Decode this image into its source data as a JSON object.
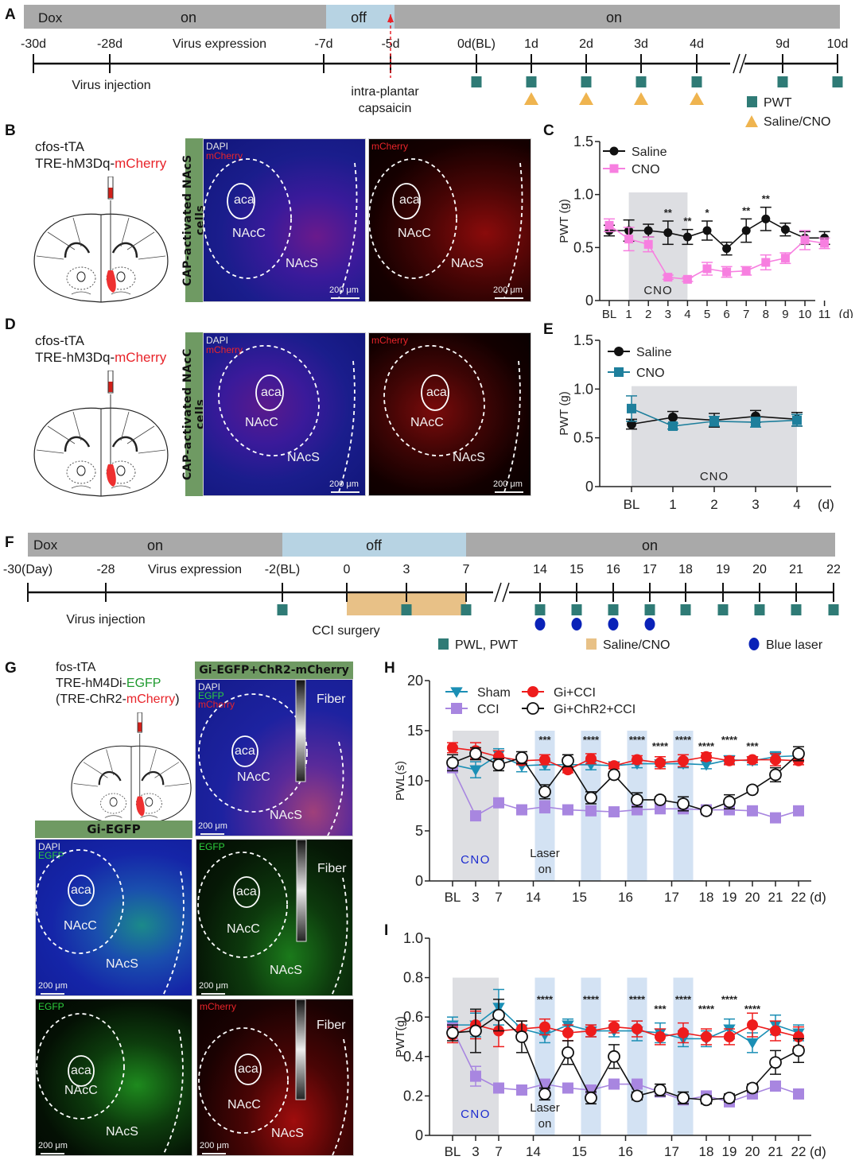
{
  "figure": {
    "panel_labels": [
      "A",
      "B",
      "C",
      "D",
      "E",
      "F",
      "G",
      "H",
      "I"
    ]
  },
  "panelA": {
    "dox_label": "Dox",
    "segments": [
      {
        "label": "on",
        "state": "on"
      },
      {
        "label": "off",
        "state": "off"
      },
      {
        "label": "on",
        "state": "on"
      }
    ],
    "ticks": [
      "-30d",
      "-28d",
      "-7d",
      "-5d",
      "0d(BL)",
      "1d",
      "2d",
      "3d",
      "4d",
      "9d",
      "10d"
    ],
    "annotation_virus_expression": "Virus expression",
    "annotation_virus_injection": "Virus injection",
    "annotation_capsaicin": "intra-plantar capsaicin",
    "annotation_capsaicin_line1": "intra-plantar",
    "annotation_capsaicin_line2": "capsaicin",
    "pwt_days": [
      "0d(BL)",
      "1d",
      "2d",
      "3d",
      "4d",
      "9d",
      "10d"
    ],
    "treatment_days": [
      "1d",
      "2d",
      "3d",
      "4d"
    ],
    "legend": [
      {
        "label": "PWT",
        "symbol": "square",
        "color": "#2f7b76"
      },
      {
        "label": "Saline/CNO",
        "symbol": "triangle",
        "color": "#efb44f"
      }
    ],
    "colors": {
      "on": "#a9a9a9",
      "off": "#b7d3e3",
      "marker_pwt": "#2f7b76",
      "marker_treat": "#efb44f",
      "capsaicin_arrow": "#e8242a"
    }
  },
  "panelB": {
    "genotype_line1": "cfos-tTA",
    "genotype_line2_prefix": "TRE-hM3Dq-",
    "genotype_line2_highlight": "mCherry",
    "side_banner": "CAP-activated NAcS cells",
    "images": [
      {
        "channels": [
          "DAPI",
          "mCherry"
        ],
        "regions": [
          "aca",
          "NAcC",
          "NAcS"
        ],
        "scale": "200 μm"
      },
      {
        "channels": [
          "mCherry"
        ],
        "regions": [
          "aca",
          "NAcC",
          "NAcS"
        ],
        "scale": "200 μm"
      }
    ]
  },
  "panelD": {
    "genotype_line1": "cfos-tTA",
    "genotype_line2_prefix": "TRE-hM3Dq-",
    "genotype_line2_highlight": "mCherry",
    "side_banner": "CAP-activated NAcC cells",
    "images": [
      {
        "channels": [
          "DAPI",
          "mCherry"
        ],
        "regions": [
          "aca",
          "NAcC",
          "NAcS"
        ],
        "scale": "200 μm"
      },
      {
        "channels": [
          "mCherry"
        ],
        "regions": [
          "aca",
          "NAcC",
          "NAcS"
        ],
        "scale": "200 μm"
      }
    ]
  },
  "panelF": {
    "dox_label": "Dox",
    "segments": [
      {
        "label": "on",
        "state": "on"
      },
      {
        "label": "off",
        "state": "off"
      },
      {
        "label": "on",
        "state": "on"
      }
    ],
    "ticks": [
      "-30(Day)",
      "-28",
      "-2(BL)",
      "0",
      "3",
      "7",
      "14",
      "15",
      "16",
      "17",
      "18",
      "19",
      "20",
      "21",
      "22"
    ],
    "annotation_virus_expression": "Virus expression",
    "annotation_virus_injection": "Virus injection",
    "annotation_cci": "CCI surgery",
    "measure_days": [
      "-2(BL)",
      "3",
      "7",
      "14",
      "15",
      "16",
      "17",
      "18",
      "19",
      "20",
      "21",
      "22"
    ],
    "laser_days": [
      "14",
      "15",
      "16",
      "17"
    ],
    "legend": [
      {
        "label": "PWL, PWT",
        "symbol": "square",
        "color": "#2f7b76"
      },
      {
        "label": "Saline/CNO",
        "symbol": "rect",
        "color": "#e8c187"
      },
      {
        "label": "Blue laser",
        "symbol": "circle",
        "color": "#0a22b8"
      }
    ]
  },
  "panelG": {
    "genotype_line1": "fos-tTA",
    "genotype_line2_prefix": "TRE-hM4Di-",
    "genotype_line2_highlight": "EGFP",
    "genotype_line3_prefix": "(TRE-ChR2-",
    "genotype_line3_highlight": "mCherry",
    "genotype_line3_suffix": ")",
    "banner_right": "Gi-EGFP+ChR2-mCherry",
    "banner_left": "Gi-EGFP",
    "images": [
      {
        "id": "merge-chr2",
        "channels": [
          "DAPI",
          "EGFP",
          "mCherry"
        ],
        "regions": [
          "aca",
          "NAcC",
          "NAcS"
        ],
        "fiber": "Fiber",
        "scale": "200 μm"
      },
      {
        "id": "merge-gi",
        "channels": [
          "DAPI",
          "EGFP"
        ],
        "regions": [
          "aca",
          "NAcC",
          "NAcS"
        ],
        "scale": "200 μm"
      },
      {
        "id": "egfp-fiber",
        "channels": [
          "EGFP"
        ],
        "regions": [
          "aca",
          "NAcC",
          "NAcS"
        ],
        "fiber": "Fiber",
        "scale": "200 μm"
      },
      {
        "id": "egfp-gi",
        "channels": [
          "EGFP"
        ],
        "regions": [
          "aca",
          "NAcC",
          "NAcS"
        ],
        "scale": "200 μm"
      },
      {
        "id": "mcherry-fiber",
        "channels": [
          "mCherry"
        ],
        "regions": [
          "aca",
          "NAcC",
          "NAcS"
        ],
        "fiber": "Fiber",
        "scale": "200 μm"
      }
    ]
  },
  "chart_data": [
    {
      "id": "C",
      "type": "line",
      "title": "",
      "xlabel": "(d)",
      "ylabel": "PWT (g)",
      "ylim": [
        0,
        1.5
      ],
      "yticks": [
        "0",
        "0.5",
        "1.0",
        "1.5"
      ],
      "categories": [
        "BL",
        "1",
        "2",
        "3",
        "4",
        "5",
        "6",
        "7",
        "8",
        "9",
        "10",
        "11"
      ],
      "shaded": {
        "label": "CNO",
        "from": "1",
        "to": "4"
      },
      "legend_position": "top-left",
      "series": [
        {
          "name": "Saline",
          "marker": "circle",
          "color": "#111111",
          "values": [
            0.66,
            0.66,
            0.66,
            0.64,
            0.6,
            0.66,
            0.49,
            0.66,
            0.77,
            0.67,
            0.59,
            0.59
          ],
          "errors": [
            0.05,
            0.1,
            0.06,
            0.11,
            0.07,
            0.09,
            0.06,
            0.11,
            0.11,
            0.06,
            0.06,
            0.06
          ]
        },
        {
          "name": "CNO",
          "marker": "square",
          "color": "#f77fe0",
          "values": [
            0.71,
            0.58,
            0.53,
            0.22,
            0.2,
            0.3,
            0.27,
            0.28,
            0.36,
            0.4,
            0.57,
            0.54
          ],
          "errors": [
            0.06,
            0.11,
            0.07,
            0.02,
            0.02,
            0.06,
            0.05,
            0.04,
            0.07,
            0.05,
            0.09,
            0.05
          ]
        }
      ],
      "significance": [
        {
          "x": "3",
          "text": "**"
        },
        {
          "x": "4",
          "text": "**"
        },
        {
          "x": "5",
          "text": "*"
        },
        {
          "x": "7",
          "text": "**"
        },
        {
          "x": "8",
          "text": "**"
        }
      ]
    },
    {
      "id": "E",
      "type": "line",
      "title": "",
      "xlabel": "(d)",
      "ylabel": "PWT (g)",
      "ylim": [
        0,
        1.5
      ],
      "yticks": [
        "0",
        "0.5",
        "1.0",
        "1.5"
      ],
      "categories": [
        "BL",
        "1",
        "2",
        "3",
        "4"
      ],
      "shaded": {
        "label": "CNO",
        "from": "BL",
        "to": "4"
      },
      "legend_position": "top-left",
      "series": [
        {
          "name": "Saline",
          "marker": "circle",
          "color": "#111111",
          "values": [
            0.64,
            0.71,
            0.68,
            0.72,
            0.69
          ],
          "errors": [
            0.05,
            0.06,
            0.07,
            0.06,
            0.07
          ]
        },
        {
          "name": "CNO",
          "marker": "square",
          "color": "#1e7f9c",
          "values": [
            0.8,
            0.62,
            0.67,
            0.66,
            0.68
          ],
          "errors": [
            0.13,
            0.03,
            0.05,
            0.05,
            0.06
          ]
        }
      ],
      "significance": []
    },
    {
      "id": "H",
      "type": "line",
      "title": "",
      "xlabel": "(d)",
      "ylabel": "PWL(s)",
      "ylim": [
        0,
        20
      ],
      "yticks": [
        "0",
        "5",
        "10",
        "15",
        "20"
      ],
      "x_positions": [
        "BL",
        "3",
        "7",
        "14a",
        "14",
        "15a",
        "15",
        "16a",
        "16",
        "17a",
        "17",
        "18",
        "19",
        "20",
        "21",
        "22"
      ],
      "tick_labels": [
        {
          "label": "BL",
          "at": 0
        },
        {
          "label": "3",
          "at": 1
        },
        {
          "label": "7",
          "at": 2
        },
        {
          "label": "14",
          "at": 3.5
        },
        {
          "label": "15",
          "at": 5.5
        },
        {
          "label": "16",
          "at": 7.5
        },
        {
          "label": "17",
          "at": 9.5
        },
        {
          "label": "18",
          "at": 11
        },
        {
          "label": "19",
          "at": 12
        },
        {
          "label": "20",
          "at": 13
        },
        {
          "label": "21",
          "at": 14
        },
        {
          "label": "22",
          "at": 15
        }
      ],
      "cno_shade": {
        "label": "CNO",
        "from": 0,
        "to": 2
      },
      "laser_bands": [
        {
          "from": 3.5,
          "to": 4.5
        },
        {
          "from": 5.5,
          "to": 6.5
        },
        {
          "from": 7.5,
          "to": 8.5
        },
        {
          "from": 9.5,
          "to": 10.5
        }
      ],
      "laser_label_line1": "Laser",
      "laser_label_line2": "on",
      "legend_position": "top-left",
      "series": [
        {
          "name": "Sham",
          "marker": "triangle-down",
          "color": "#1b8fb5",
          "values": [
            11.6,
            11.1,
            12.6,
            11.5,
            11.6,
            11.6,
            11.6,
            11.5,
            11.7,
            11.7,
            11.7,
            11.6,
            12.1,
            12.0,
            12.4,
            12.5
          ],
          "errors": [
            0.4,
            0.8,
            0.6,
            0.6,
            0.5,
            0.4,
            0.5,
            0.3,
            0.4,
            0.3,
            0.4,
            0.4,
            0.4,
            0.4,
            0.5,
            0.4
          ]
        },
        {
          "name": "CCI",
          "marker": "square",
          "color": "#a886e0",
          "values": [
            11.3,
            6.5,
            7.8,
            7.1,
            7.4,
            7.1,
            7.0,
            6.9,
            7.1,
            7.2,
            7.2,
            7.1,
            7.1,
            7.0,
            6.3,
            7.0
          ],
          "errors": [
            0.3,
            0.3,
            0.3,
            0.3,
            0.6,
            0.3,
            0.3,
            0.3,
            0.3,
            0.3,
            0.3,
            0.3,
            0.3,
            0.3,
            0.3,
            0.3
          ]
        },
        {
          "name": "Gi+CCI",
          "marker": "circle",
          "color": "#ee1c1c",
          "values": [
            13.3,
            13.0,
            12.4,
            12.0,
            12.1,
            11.1,
            12.2,
            11.5,
            12.1,
            11.8,
            12.0,
            12.4,
            12.0,
            12.1,
            12.1,
            12.0
          ],
          "errors": [
            0.5,
            0.8,
            0.6,
            0.4,
            0.5,
            0.3,
            0.5,
            0.3,
            0.4,
            0.6,
            0.6,
            0.4,
            0.4,
            0.3,
            0.6,
            0.4
          ]
        },
        {
          "name": "Gi+ChR2+CCI",
          "marker": "open-circle",
          "color": "#111111",
          "values": [
            11.8,
            12.7,
            11.6,
            12.3,
            8.9,
            12.0,
            8.3,
            10.6,
            8.1,
            8.1,
            7.7,
            7.0,
            7.9,
            9.1,
            10.6,
            12.7
          ],
          "errors": [
            0.8,
            0.6,
            0.6,
            0.6,
            0.7,
            0.6,
            0.6,
            0.3,
            0.7,
            0.3,
            0.7,
            0.3,
            0.7,
            0.3,
            0.7,
            0.7
          ]
        }
      ],
      "significance": [
        {
          "at": 4,
          "text": "***"
        },
        {
          "at": 6,
          "text": "****"
        },
        {
          "at": 8,
          "text": "****"
        },
        {
          "at": 9,
          "text": "****"
        },
        {
          "at": 10,
          "text": "****"
        },
        {
          "at": 11,
          "text": "****"
        },
        {
          "at": 12,
          "text": "****"
        },
        {
          "at": 13,
          "text": "***"
        }
      ]
    },
    {
      "id": "I",
      "type": "line",
      "title": "",
      "xlabel": "(d)",
      "ylabel": "PWT(g)",
      "ylim": [
        0,
        1.0
      ],
      "yticks": [
        "0",
        "0.2",
        "0.4",
        "0.6",
        "0.8",
        "1.0"
      ],
      "x_positions": [
        "BL",
        "3",
        "7",
        "14a",
        "14",
        "15a",
        "15",
        "16a",
        "16",
        "17a",
        "17",
        "18",
        "19",
        "20",
        "21",
        "22"
      ],
      "tick_labels": [
        {
          "label": "BL",
          "at": 0
        },
        {
          "label": "3",
          "at": 1
        },
        {
          "label": "7",
          "at": 2
        },
        {
          "label": "14",
          "at": 3.5
        },
        {
          "label": "15",
          "at": 5.5
        },
        {
          "label": "16",
          "at": 7.5
        },
        {
          "label": "17",
          "at": 9.5
        },
        {
          "label": "18",
          "at": 11
        },
        {
          "label": "19",
          "at": 12
        },
        {
          "label": "20",
          "at": 13
        },
        {
          "label": "21",
          "at": 14
        },
        {
          "label": "22",
          "at": 15
        }
      ],
      "cno_shade": {
        "label": "CNO",
        "from": 0,
        "to": 2
      },
      "laser_bands": [
        {
          "from": 3.5,
          "to": 4.5
        },
        {
          "from": 5.5,
          "to": 6.5
        },
        {
          "from": 7.5,
          "to": 8.5
        },
        {
          "from": 9.5,
          "to": 10.5
        }
      ],
      "laser_label_line1": "Laser",
      "laser_label_line2": "on",
      "legend_position": "none",
      "series": [
        {
          "name": "Sham",
          "marker": "triangle-down",
          "color": "#1b8fb5",
          "values": [
            0.56,
            0.56,
            0.65,
            0.54,
            0.51,
            0.56,
            0.53,
            0.53,
            0.53,
            0.52,
            0.49,
            0.49,
            0.54,
            0.47,
            0.56,
            0.52
          ],
          "errors": [
            0.04,
            0.06,
            0.09,
            0.04,
            0.04,
            0.03,
            0.03,
            0.03,
            0.05,
            0.05,
            0.04,
            0.04,
            0.05,
            0.05,
            0.05,
            0.04
          ]
        },
        {
          "name": "CCI",
          "marker": "square",
          "color": "#a886e0",
          "values": [
            0.54,
            0.3,
            0.24,
            0.23,
            0.26,
            0.24,
            0.23,
            0.26,
            0.26,
            0.22,
            0.18,
            0.2,
            0.17,
            0.21,
            0.25,
            0.21
          ],
          "errors": [
            0.03,
            0.05,
            0.02,
            0.02,
            0.02,
            0.02,
            0.02,
            0.02,
            0.02,
            0.02,
            0.02,
            0.02,
            0.02,
            0.02,
            0.02,
            0.02
          ]
        },
        {
          "name": "Gi+CCI",
          "marker": "circle",
          "color": "#ee1c1c",
          "values": [
            0.51,
            0.56,
            0.53,
            0.54,
            0.55,
            0.52,
            0.53,
            0.55,
            0.54,
            0.5,
            0.52,
            0.5,
            0.5,
            0.56,
            0.53,
            0.5
          ],
          "errors": [
            0.04,
            0.07,
            0.08,
            0.04,
            0.04,
            0.04,
            0.03,
            0.03,
            0.04,
            0.04,
            0.05,
            0.04,
            0.04,
            0.06,
            0.05,
            0.05
          ]
        },
        {
          "name": "Gi+ChR2+CCI",
          "marker": "open-circle",
          "color": "#111111",
          "values": [
            0.52,
            0.53,
            0.61,
            0.5,
            0.21,
            0.42,
            0.19,
            0.4,
            0.2,
            0.23,
            0.19,
            0.18,
            0.19,
            0.24,
            0.37,
            0.43
          ],
          "errors": [
            0.04,
            0.11,
            0.08,
            0.08,
            0.03,
            0.06,
            0.03,
            0.06,
            0.02,
            0.03,
            0.03,
            0.02,
            0.02,
            0.02,
            0.06,
            0.06
          ]
        }
      ],
      "significance": [
        {
          "at": 4,
          "text": "****"
        },
        {
          "at": 6,
          "text": "****"
        },
        {
          "at": 8,
          "text": "****"
        },
        {
          "at": 9,
          "text": "***"
        },
        {
          "at": 10,
          "text": "****"
        },
        {
          "at": 11,
          "text": "****"
        },
        {
          "at": 12,
          "text": "****"
        },
        {
          "at": 13,
          "text": "****"
        }
      ]
    }
  ]
}
